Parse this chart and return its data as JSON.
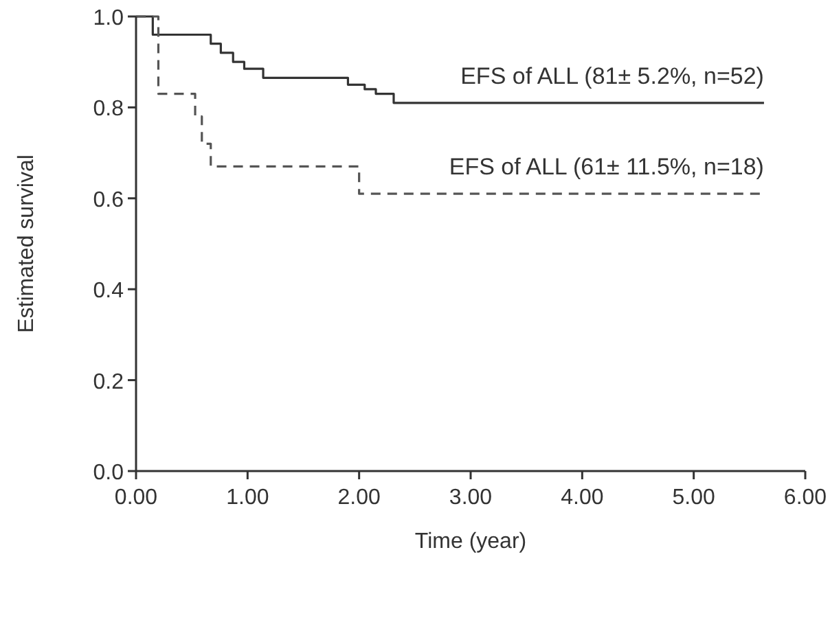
{
  "chart_data": {
    "type": "step",
    "xlabel": "Time (year)",
    "ylabel": "Estimated survival",
    "xlim": [
      0,
      6
    ],
    "ylim": [
      0,
      1
    ],
    "xticks": [
      {
        "value": 0,
        "label": "0.00"
      },
      {
        "value": 1,
        "label": "1.00"
      },
      {
        "value": 2,
        "label": "2.00"
      },
      {
        "value": 3,
        "label": "3.00"
      },
      {
        "value": 4,
        "label": "4.00"
      },
      {
        "value": 5,
        "label": "5.00"
      },
      {
        "value": 6,
        "label": "6.00"
      }
    ],
    "yticks": [
      {
        "value": 0,
        "label": "0.0"
      },
      {
        "value": 0.2,
        "label": "0.2"
      },
      {
        "value": 0.4,
        "label": "0.4"
      },
      {
        "value": 0.6,
        "label": "0.6"
      },
      {
        "value": 0.8,
        "label": "0.8"
      },
      {
        "value": 1,
        "label": "1.0"
      }
    ],
    "grid": false,
    "series": [
      {
        "name": "EFS of ALL (81± 5.2%, n=52)",
        "color": "#333333",
        "line_style": "solid",
        "x": [
          0,
          0.15,
          0.67,
          0.76,
          0.87,
          0.97,
          1.14,
          1.9,
          2.05,
          2.15,
          2.31,
          5.63
        ],
        "values": [
          1,
          0.96,
          0.94,
          0.92,
          0.9,
          0.885,
          0.865,
          0.85,
          0.84,
          0.83,
          0.81,
          0.81
        ]
      },
      {
        "name": "EFS of ALL (61± 11.5%, n=18)",
        "color": "#555555",
        "line_style": "dashed",
        "x": [
          0,
          0.2,
          0.53,
          0.59,
          0.67,
          2,
          5.63
        ],
        "values": [
          1,
          0.83,
          0.78,
          0.72,
          0.67,
          0.61,
          0.61
        ]
      }
    ]
  }
}
